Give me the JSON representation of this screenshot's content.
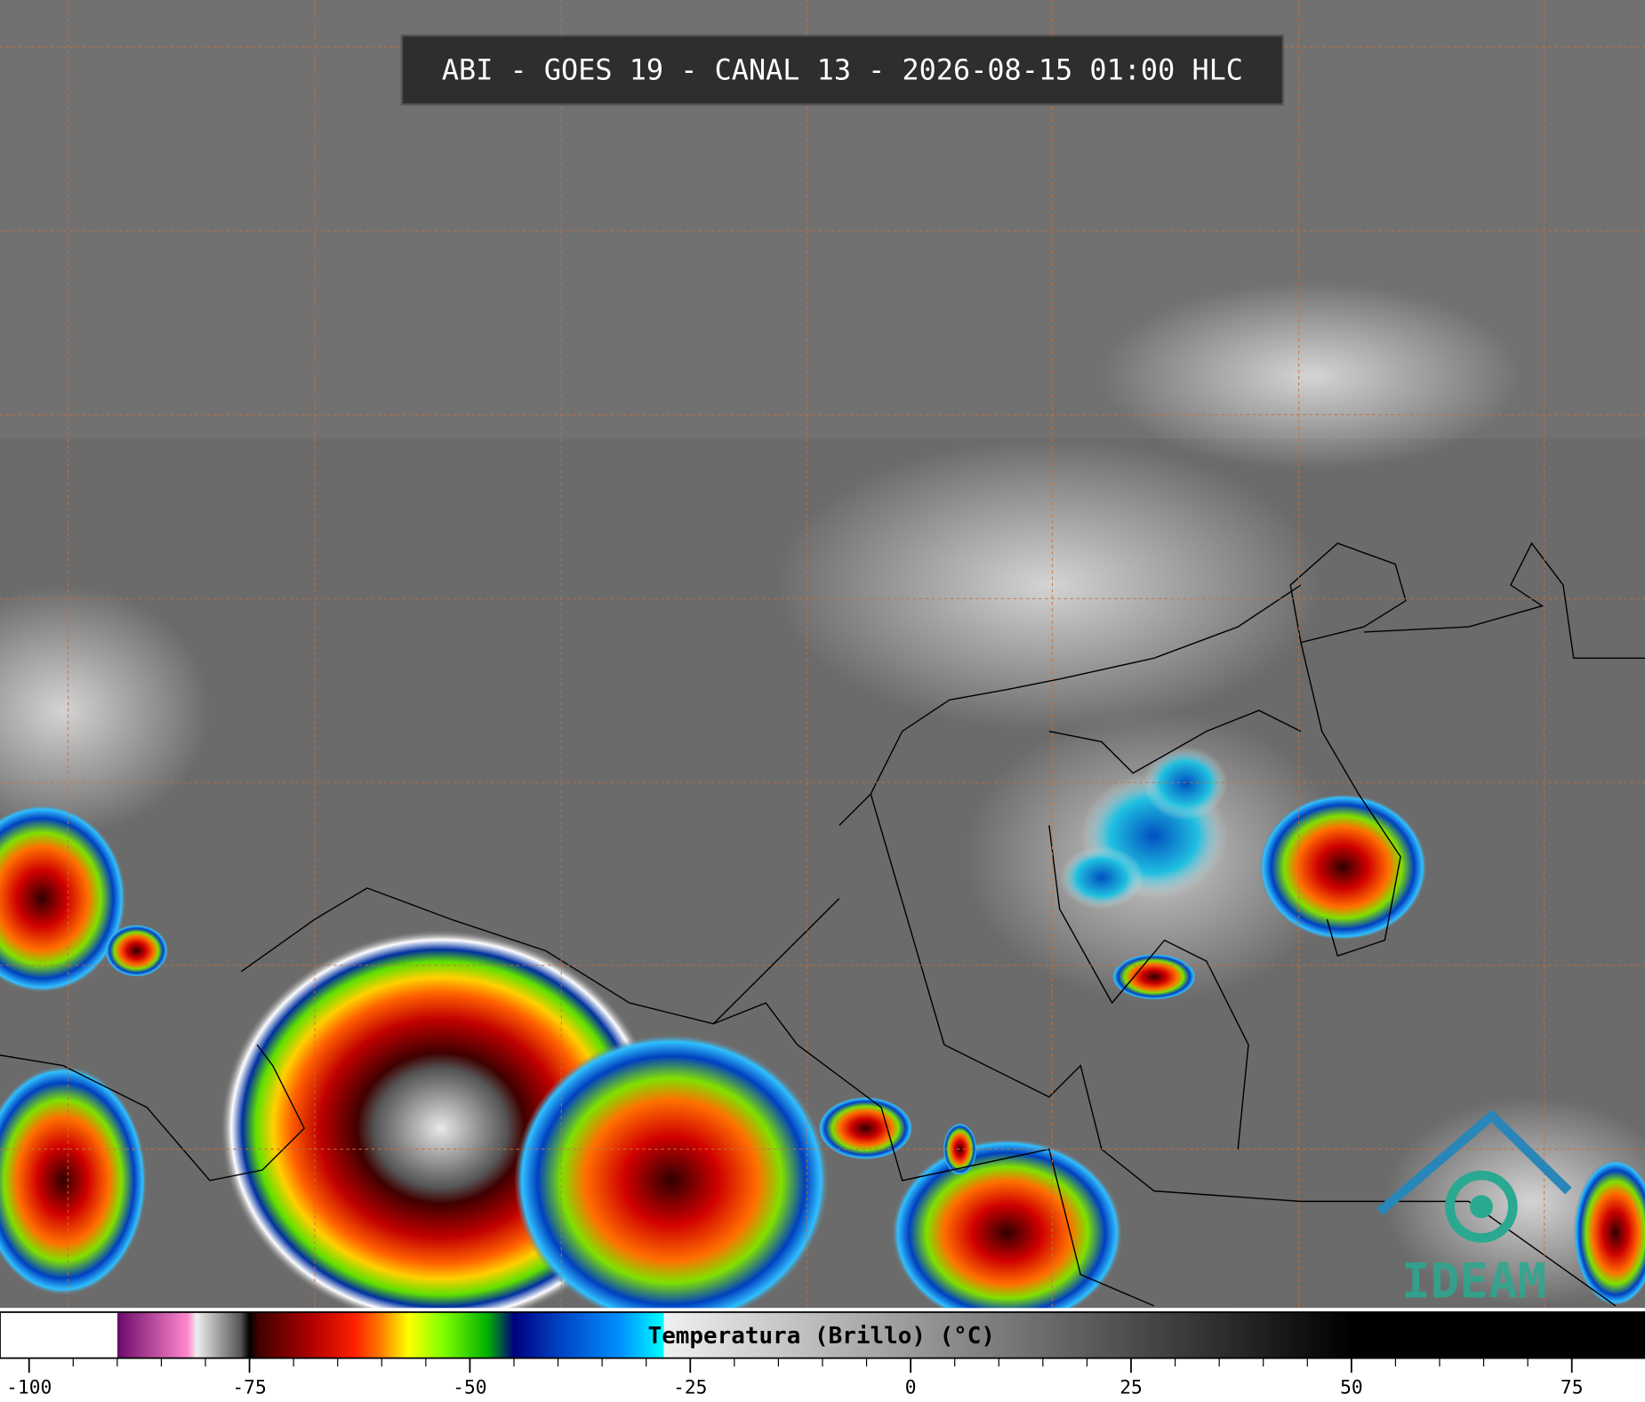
{
  "title": "ABI - GOES 19 - CANAL 13 - 2026-08-15 01:00 HLC",
  "colorbar": {
    "label": "Temperatura (Brillo) (°C)",
    "range": [
      -103.3,
      83.3
    ],
    "ticks": [
      -100,
      -75,
      -50,
      -25,
      0,
      25,
      50,
      75
    ],
    "stops": [
      {
        "value": -103.3,
        "color": "#ffffff"
      },
      {
        "value": -90,
        "color": "#ffffff"
      },
      {
        "value": -90,
        "color": "#6a0a6a"
      },
      {
        "value": -82,
        "color": "#ff88cc"
      },
      {
        "value": -81,
        "color": "#eeeeee"
      },
      {
        "value": -76,
        "color": "#555555"
      },
      {
        "value": -75,
        "color": "#000000"
      },
      {
        "value": -74,
        "color": "#400000"
      },
      {
        "value": -68,
        "color": "#b00000"
      },
      {
        "value": -63,
        "color": "#ff2000"
      },
      {
        "value": -60,
        "color": "#ff8000"
      },
      {
        "value": -57,
        "color": "#ffff00"
      },
      {
        "value": -53,
        "color": "#80ff00"
      },
      {
        "value": -48,
        "color": "#00b000"
      },
      {
        "value": -45,
        "color": "#000080"
      },
      {
        "value": -40,
        "color": "#0040c0"
      },
      {
        "value": -33,
        "color": "#0090ff"
      },
      {
        "value": -28,
        "color": "#00ffff"
      },
      {
        "value": -28,
        "color": "#f0f0f0"
      },
      {
        "value": 50,
        "color": "#000000"
      },
      {
        "value": 83.3,
        "color": "#000000"
      }
    ]
  },
  "logo": "IDEAM"
}
